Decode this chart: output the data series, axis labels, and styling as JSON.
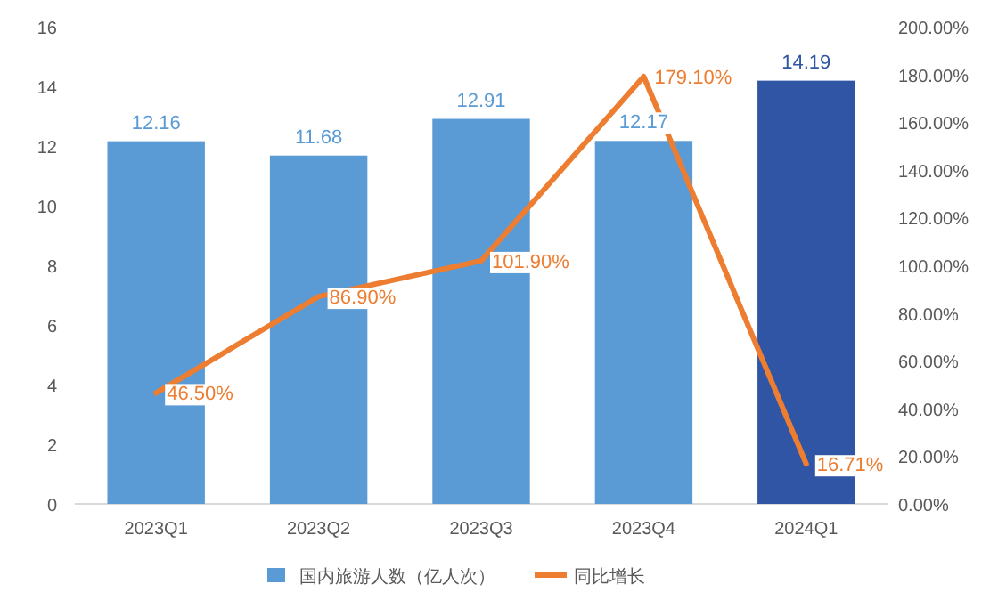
{
  "chart_data": {
    "type": "bar",
    "categories": [
      "2023Q1",
      "2023Q2",
      "2023Q3",
      "2023Q4",
      "2024Q1"
    ],
    "series": [
      {
        "name": "国内旅游人数（亿人次）",
        "color": "#5b9bd5",
        "colors": [
          "#5b9bd5",
          "#5b9bd5",
          "#5b9bd5",
          "#5b9bd5",
          "#2f55a4"
        ],
        "values": [
          12.16,
          11.68,
          12.91,
          12.17,
          14.19
        ],
        "value_labels": [
          "12.16",
          "11.68",
          "12.91",
          "12.17",
          "14.19"
        ]
      },
      {
        "name": "同比增长",
        "type": "line",
        "axis": "y2",
        "color": "#ed7d31",
        "values": [
          46.5,
          86.9,
          101.9,
          179.1,
          16.71
        ],
        "value_labels": [
          "46.50%",
          "86.90%",
          "101.90%",
          "179.10%",
          "16.71%"
        ]
      }
    ],
    "ylim": [
      0,
      16
    ],
    "yticks": [
      0,
      2,
      4,
      6,
      8,
      10,
      12,
      14,
      16
    ],
    "y2lim": [
      0,
      200
    ],
    "y2ticks": [
      {
        "value": 0,
        "label": "0.00%"
      },
      {
        "value": 20,
        "label": "20.00%"
      },
      {
        "value": 40,
        "label": "40.00%"
      },
      {
        "value": 60,
        "label": "60.00%"
      },
      {
        "value": 80,
        "label": "80.00%"
      },
      {
        "value": 100,
        "label": "100.00%"
      },
      {
        "value": 120,
        "label": "120.00%"
      },
      {
        "value": 140,
        "label": "140.00%"
      },
      {
        "value": 160,
        "label": "160.00%"
      },
      {
        "value": 180,
        "label": "180.00%"
      },
      {
        "value": 200,
        "label": "200.00%"
      }
    ],
    "legend": "bottom",
    "marker": "none",
    "line_style": "solid"
  }
}
